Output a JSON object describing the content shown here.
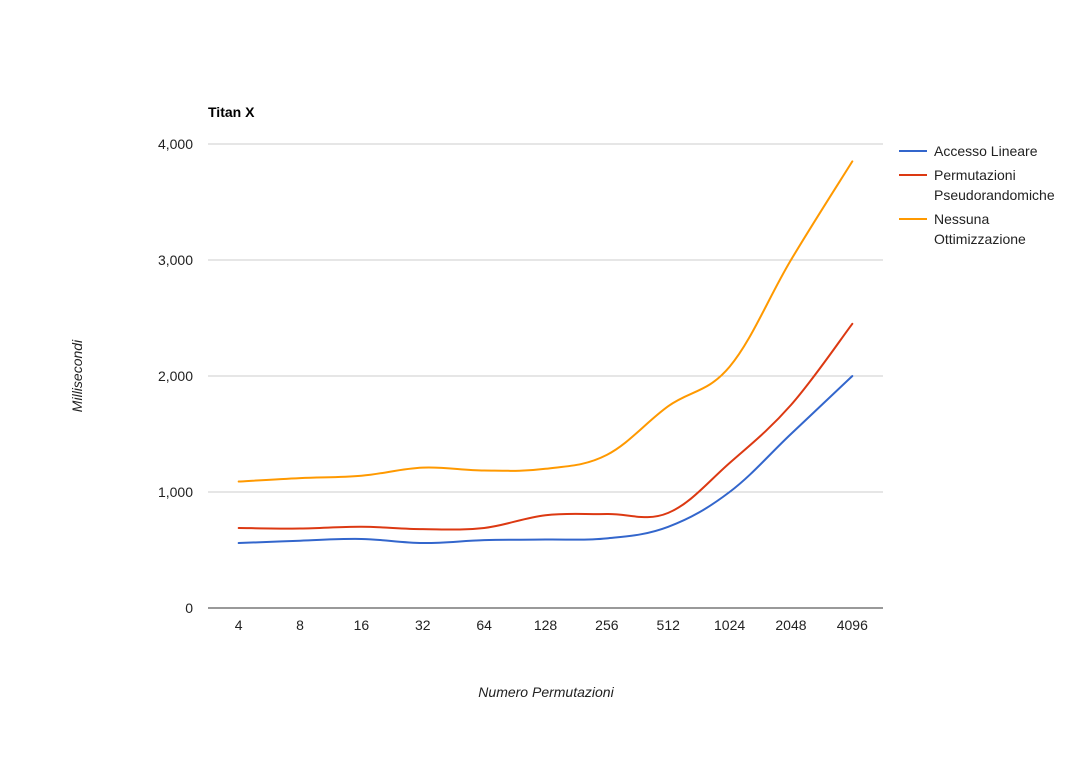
{
  "chart_data": {
    "type": "line",
    "title": "Titan X",
    "xlabel": "Numero Permutazioni",
    "ylabel": "Millisecondi",
    "categories": [
      "4",
      "8",
      "16",
      "32",
      "64",
      "128",
      "256",
      "512",
      "1024",
      "2048",
      "4096"
    ],
    "ylim": [
      0,
      4000
    ],
    "yticks": [
      0,
      1000,
      2000,
      3000,
      4000
    ],
    "ytick_labels": [
      "0",
      "1,000",
      "2,000",
      "3,000",
      "4,000"
    ],
    "grid": true,
    "legend_position": "right",
    "series": [
      {
        "name": "Accesso Lineare",
        "color": "#3366cc",
        "values": [
          560,
          580,
          595,
          560,
          585,
          590,
          600,
          700,
          1000,
          1500,
          2000
        ]
      },
      {
        "name": "Permutazioni Pseudorandomiche",
        "color": "#dc3912",
        "values": [
          690,
          685,
          700,
          680,
          690,
          800,
          810,
          820,
          1250,
          1750,
          2450
        ]
      },
      {
        "name": "Nessuna Ottimizzazione",
        "color": "#ff9900",
        "values": [
          1090,
          1120,
          1140,
          1210,
          1185,
          1200,
          1320,
          1740,
          2080,
          3000,
          3850
        ]
      }
    ]
  }
}
